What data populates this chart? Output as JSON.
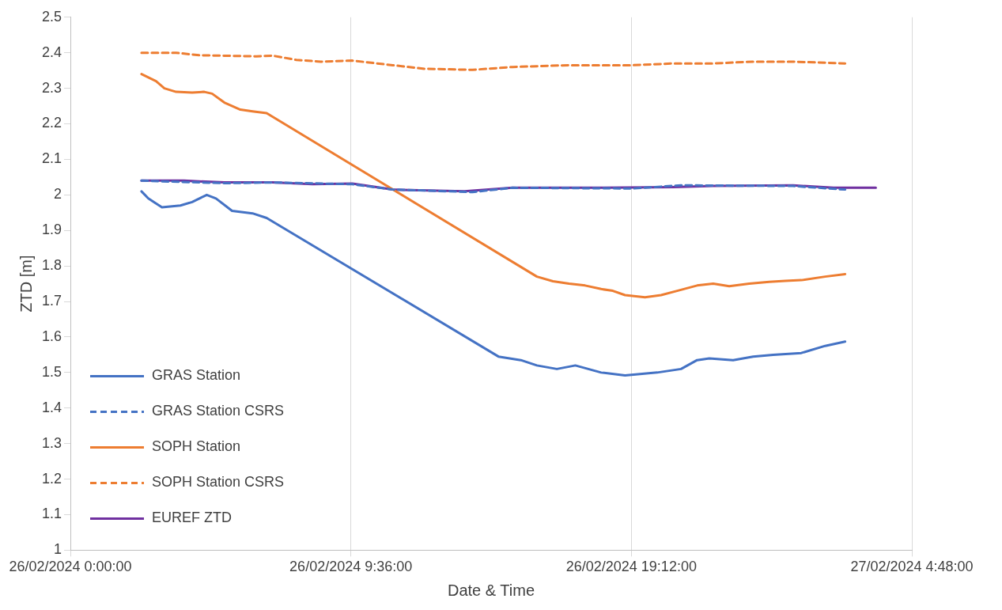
{
  "chart_data": {
    "type": "line",
    "xlabel": "Date & Time",
    "ylabel": "ZTD [m]",
    "xlim": [
      "2024-02-26T00:00",
      "2024-02-27T04:48"
    ],
    "xticks": [
      {
        "value": "2024-02-26T00:00",
        "label": "26/02/2024 0:00:00"
      },
      {
        "value": "2024-02-26T09:36",
        "label": "26/02/2024 9:36:00"
      },
      {
        "value": "2024-02-26T19:12",
        "label": "26/02/2024 19:12:00"
      },
      {
        "value": "2024-02-27T04:48",
        "label": "27/02/2024 4:48:00"
      }
    ],
    "ylim": [
      1,
      2.5
    ],
    "yticks": [
      1,
      1.1,
      1.2,
      1.3,
      1.4,
      1.5,
      1.6,
      1.7,
      1.8,
      1.9,
      2,
      2.1,
      2.2,
      2.3,
      2.4,
      2.5
    ],
    "grid": "x",
    "legend": "bottom left",
    "marker": "none",
    "series": [
      {
        "name": "GRAS Station",
        "color": "#4472c4",
        "line_style": "solid",
        "x": [
          "2024-02-26T02:26",
          "2024-02-26T02:40",
          "2024-02-26T03:08",
          "2024-02-26T03:46",
          "2024-02-26T04:10",
          "2024-02-26T04:40",
          "2024-02-26T04:59",
          "2024-02-26T05:32",
          "2024-02-26T06:14",
          "2024-02-26T06:43",
          "2024-02-26T14:39",
          "2024-02-26T15:25",
          "2024-02-26T15:58",
          "2024-02-26T16:39",
          "2024-02-26T17:17",
          "2024-02-26T18:10",
          "2024-02-26T18:59",
          "2024-02-26T20:05",
          "2024-02-26T20:54",
          "2024-02-26T21:27",
          "2024-02-26T21:52",
          "2024-02-26T22:41",
          "2024-02-26T23:22",
          "2024-02-27T00:03",
          "2024-02-27T01:01",
          "2024-02-27T01:50",
          "2024-02-27T02:31"
        ],
        "values": [
          2.01,
          1.99,
          1.965,
          1.97,
          1.98,
          2.0,
          1.99,
          1.955,
          1.948,
          1.935,
          1.545,
          1.535,
          1.52,
          1.51,
          1.52,
          1.5,
          1.492,
          1.5,
          1.51,
          1.535,
          1.54,
          1.535,
          1.545,
          1.55,
          1.555,
          1.575,
          1.587
        ]
      },
      {
        "name": "GRAS Station CSRS",
        "color": "#4472c4",
        "line_style": "dashed",
        "x": [
          "2024-02-26T02:26",
          "2024-02-26T05:16",
          "2024-02-26T06:55",
          "2024-02-26T09:39",
          "2024-02-26T11:02",
          "2024-02-26T13:46",
          "2024-02-26T15:08",
          "2024-02-26T19:15",
          "2024-02-26T20:54",
          "2024-02-27T00:44",
          "2024-02-27T02:31"
        ],
        "values": [
          2.04,
          2.033,
          2.035,
          2.03,
          2.015,
          2.008,
          2.02,
          2.018,
          2.027,
          2.025,
          2.015
        ]
      },
      {
        "name": "SOPH Station",
        "color": "#ed7d31",
        "line_style": "solid",
        "x": [
          "2024-02-26T02:26",
          "2024-02-26T02:56",
          "2024-02-26T03:13",
          "2024-02-26T03:37",
          "2024-02-26T04:10",
          "2024-02-26T04:35",
          "2024-02-26T04:51",
          "2024-02-26T05:16",
          "2024-02-26T05:49",
          "2024-02-26T06:14",
          "2024-02-26T06:43",
          "2024-02-26T15:58",
          "2024-02-26T16:31",
          "2024-02-26T17:04",
          "2024-02-26T17:37",
          "2024-02-26T18:10",
          "2024-02-26T18:34",
          "2024-02-26T18:59",
          "2024-02-26T19:40",
          "2024-02-26T20:13",
          "2024-02-26T20:46",
          "2024-02-26T21:27",
          "2024-02-26T22:00",
          "2024-02-26T22:33",
          "2024-02-26T23:14",
          "2024-02-26T23:55",
          "2024-02-27T00:28",
          "2024-02-27T01:01",
          "2024-02-27T01:50",
          "2024-02-27T02:31"
        ],
        "values": [
          2.34,
          2.32,
          2.3,
          2.29,
          2.288,
          2.29,
          2.285,
          2.26,
          2.24,
          2.235,
          2.23,
          1.77,
          1.757,
          1.75,
          1.745,
          1.735,
          1.73,
          1.718,
          1.712,
          1.718,
          1.73,
          1.745,
          1.75,
          1.743,
          1.75,
          1.755,
          1.758,
          1.76,
          1.77,
          1.777
        ]
      },
      {
        "name": "SOPH Station CSRS",
        "color": "#ed7d31",
        "line_style": "dashed",
        "x": [
          "2024-02-26T02:26",
          "2024-02-26T03:37",
          "2024-02-26T04:26",
          "2024-02-26T06:22",
          "2024-02-26T06:55",
          "2024-02-26T07:44",
          "2024-02-26T08:34",
          "2024-02-26T09:39",
          "2024-02-26T11:02",
          "2024-02-26T12:07",
          "2024-02-26T13:46",
          "2024-02-26T15:08",
          "2024-02-26T17:04",
          "2024-02-26T19:15",
          "2024-02-26T20:38",
          "2024-02-26T22:00",
          "2024-02-26T23:22",
          "2024-02-27T00:44",
          "2024-02-27T02:31"
        ],
        "values": [
          2.4,
          2.4,
          2.393,
          2.39,
          2.392,
          2.38,
          2.375,
          2.378,
          2.365,
          2.355,
          2.352,
          2.36,
          2.365,
          2.365,
          2.37,
          2.37,
          2.375,
          2.375,
          2.37
        ]
      },
      {
        "name": "EUREF ZTD",
        "color": "#7030a0",
        "line_style": "solid",
        "x": [
          "2024-02-26T02:26",
          "2024-02-26T03:53",
          "2024-02-26T05:16",
          "2024-02-26T06:55",
          "2024-02-26T08:17",
          "2024-02-26T09:39",
          "2024-02-26T11:02",
          "2024-02-26T13:29",
          "2024-02-26T15:08",
          "2024-02-26T17:53",
          "2024-02-26T20:38",
          "2024-02-26T22:00",
          "2024-02-27T00:44",
          "2024-02-27T02:07",
          "2024-02-27T03:34"
        ],
        "values": [
          2.04,
          2.04,
          2.035,
          2.035,
          2.03,
          2.032,
          2.015,
          2.01,
          2.02,
          2.02,
          2.022,
          2.025,
          2.027,
          2.02,
          2.02
        ]
      }
    ]
  }
}
